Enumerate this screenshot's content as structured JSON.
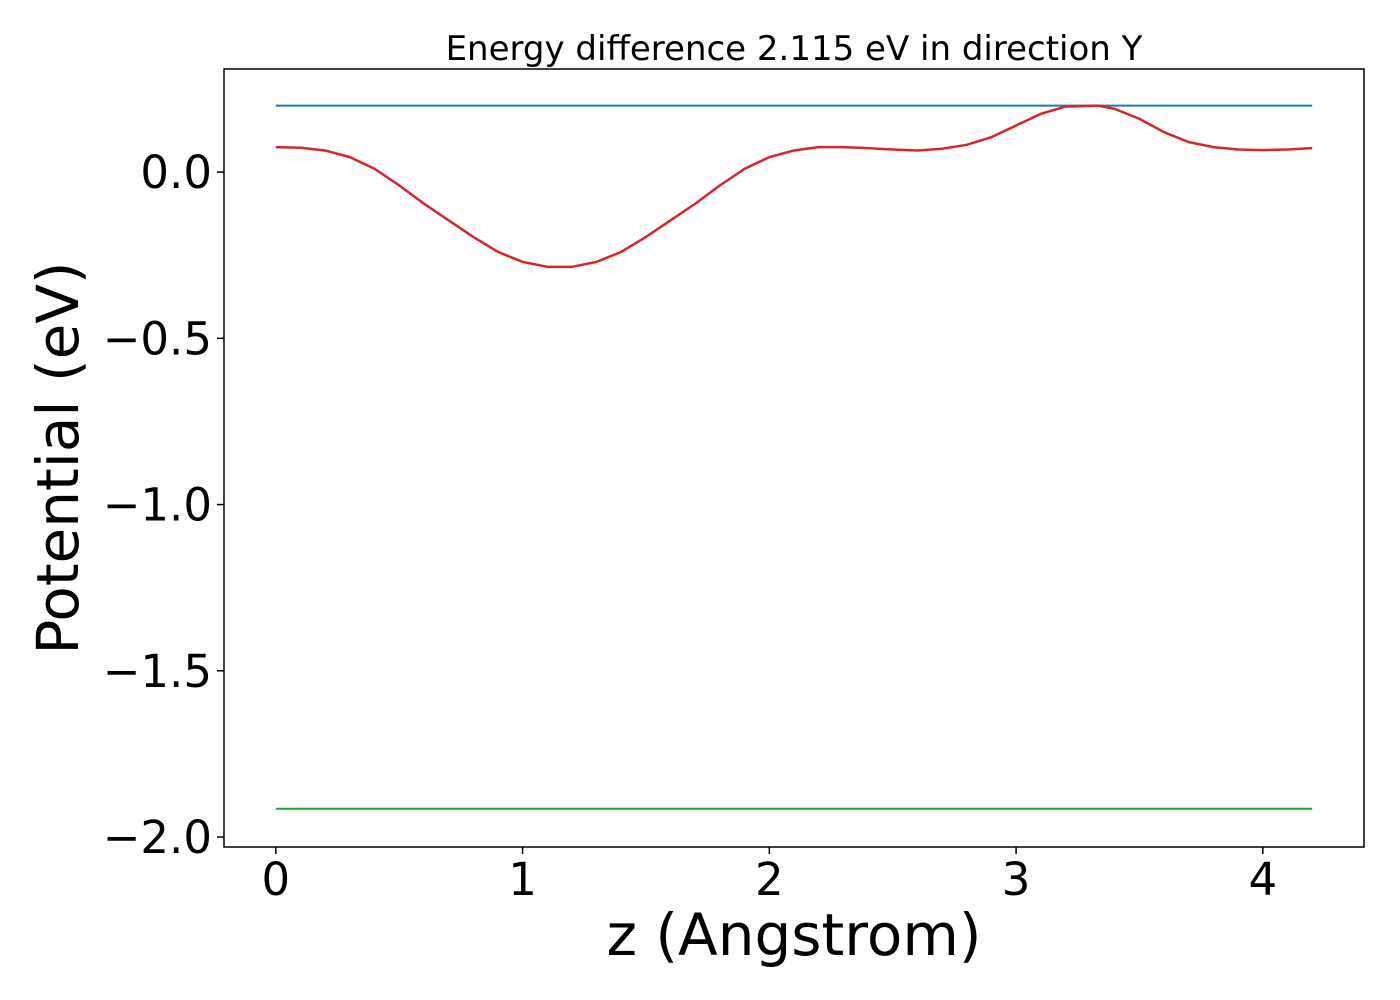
{
  "chart_data": {
    "type": "line",
    "title": "Energy difference 2.115 eV in direction Y",
    "xlabel": "z (Angstrom)",
    "ylabel": "Potential (eV)",
    "xlim": [
      -0.21,
      4.41
    ],
    "ylim": [
      -2.03,
      0.31
    ],
    "xticks": [
      0,
      1,
      2,
      3,
      4
    ],
    "xtick_labels": [
      "0",
      "1",
      "2",
      "3",
      "4"
    ],
    "yticks": [
      0.0,
      -0.5,
      -1.0,
      -1.5,
      -2.0
    ],
    "ytick_labels": [
      "0.0",
      "−0.5",
      "−1.0",
      "−1.5",
      "−2.0"
    ],
    "grid": false,
    "series": [
      {
        "color": "#1f77b4",
        "x": [
          0,
          4.2
        ],
        "y": [
          0.2,
          0.2
        ]
      },
      {
        "color": "#2ca02c",
        "x": [
          0,
          4.2
        ],
        "y": [
          -1.915,
          -1.915
        ]
      },
      {
        "color": "#d62728",
        "x": [
          0,
          0.1,
          0.2,
          0.3,
          0.4,
          0.5,
          0.6,
          0.7,
          0.8,
          0.9,
          1.0,
          1.1,
          1.2,
          1.3,
          1.4,
          1.5,
          1.6,
          1.7,
          1.8,
          1.9,
          2.0,
          2.1,
          2.2,
          2.3,
          2.4,
          2.5,
          2.6,
          2.7,
          2.8,
          2.9,
          3.0,
          3.1,
          3.2,
          3.33,
          3.4,
          3.5,
          3.6,
          3.7,
          3.8,
          3.9,
          4.0,
          4.1,
          4.2
        ],
        "y": [
          0.075,
          0.073,
          0.065,
          0.045,
          0.01,
          -0.04,
          -0.095,
          -0.145,
          -0.195,
          -0.24,
          -0.27,
          -0.285,
          -0.285,
          -0.27,
          -0.24,
          -0.195,
          -0.145,
          -0.095,
          -0.04,
          0.01,
          0.045,
          0.065,
          0.075,
          0.075,
          0.072,
          0.068,
          0.065,
          0.07,
          0.082,
          0.105,
          0.14,
          0.175,
          0.197,
          0.2,
          0.19,
          0.16,
          0.12,
          0.09,
          0.075,
          0.068,
          0.066,
          0.068,
          0.072
        ]
      }
    ]
  }
}
